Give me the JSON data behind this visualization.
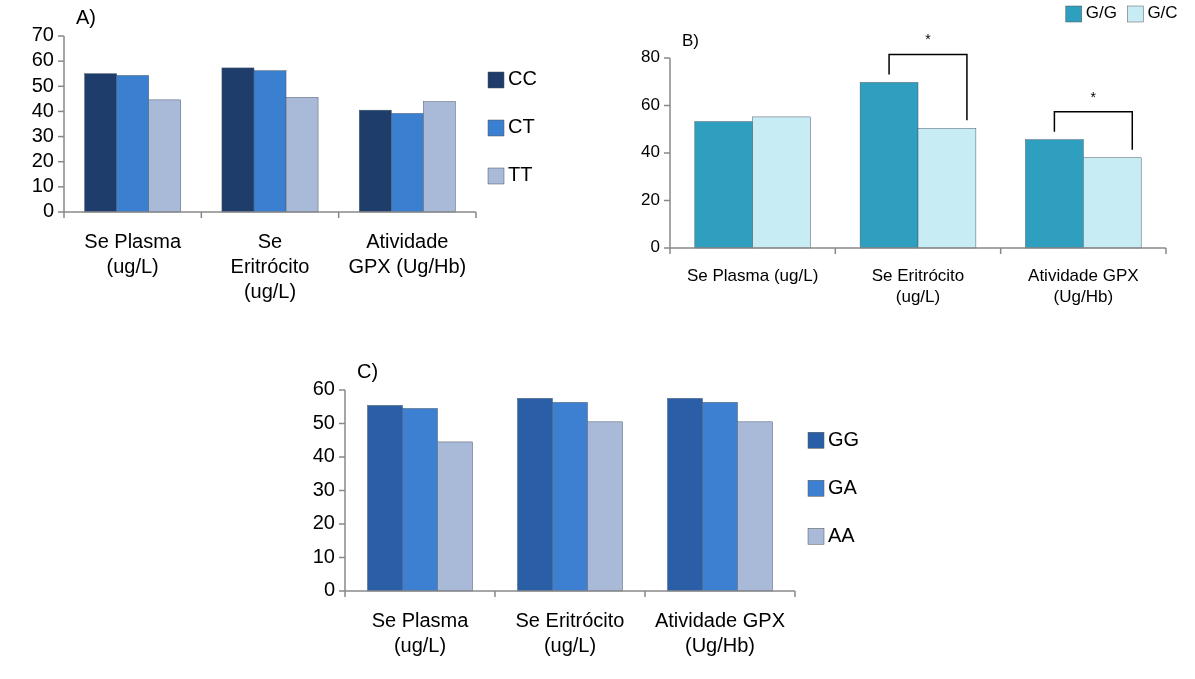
{
  "chart_data": [
    {
      "type": "bar",
      "title": "A)",
      "categories": [
        "Se Plasma (ug/L)",
        "Se Eritrócito (ug/L)",
        "Atividade GPX (Ug/Hb)"
      ],
      "series": [
        {
          "name": "CC",
          "color": "#1f3d6b",
          "values": [
            55,
            57.3,
            40.5
          ]
        },
        {
          "name": "CT",
          "color": "#3a7fd0",
          "values": [
            54.3,
            56.2,
            39.2
          ]
        },
        {
          "name": "TT",
          "color": "#a9b9d8",
          "values": [
            44.6,
            45.6,
            43.9
          ]
        }
      ],
      "ylim": [
        0,
        70
      ],
      "yticks": [
        0,
        10,
        20,
        30,
        40,
        50,
        60,
        70
      ],
      "grid": false,
      "legend": "right"
    },
    {
      "type": "bar",
      "title": "B)",
      "categories": [
        "Se Plasma (ug/L)",
        "Se Eritrócito (ug/L)",
        "Atividade GPX (Ug/Hb)"
      ],
      "series": [
        {
          "name": "G/G",
          "color": "#2e9fbf",
          "values": [
            53.2,
            69.7,
            45.6
          ]
        },
        {
          "name": "G/C",
          "color": "#c8ecf4",
          "values": [
            55.2,
            50.4,
            38
          ]
        }
      ],
      "annotations": [
        "*",
        "*"
      ],
      "ylim": [
        0,
        80
      ],
      "yticks": [
        0,
        20,
        40,
        60,
        80
      ],
      "grid": false,
      "legend": "top right"
    },
    {
      "type": "bar",
      "title": "C)",
      "categories": [
        "Se Plasma (ug/L)",
        "Se Eritrócito (ug/L)",
        "Atividade GPX (Ug/Hb)"
      ],
      "series": [
        {
          "name": "GG",
          "color": "#2a5fa8",
          "values": [
            55.4,
            57.5,
            57.5
          ]
        },
        {
          "name": "GA",
          "color": "#3d7fd0",
          "values": [
            54.5,
            56.3,
            56.3
          ]
        },
        {
          "name": "AA",
          "color": "#a9b9d8",
          "values": [
            44.5,
            50.5,
            50.5
          ]
        }
      ],
      "ylim": [
        0,
        60
      ],
      "yticks": [
        0,
        10,
        20,
        30,
        40,
        50,
        60
      ],
      "grid": false,
      "legend": "right"
    }
  ]
}
